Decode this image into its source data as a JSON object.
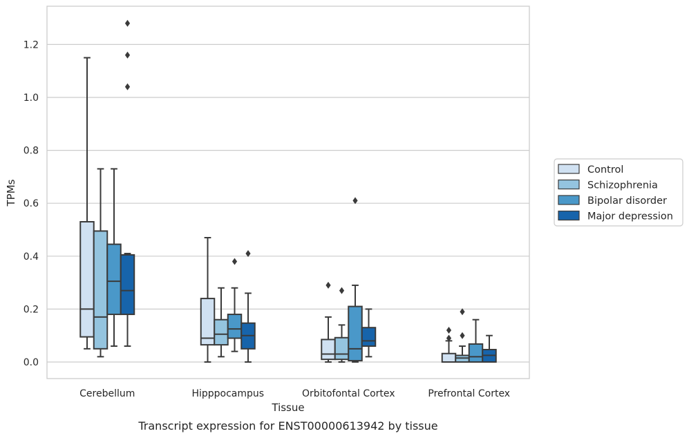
{
  "caption": "Transcript expression for ENST00000613942 by tissue",
  "chart_data": {
    "type": "box",
    "xlabel": "Tissue",
    "ylabel": "TPMs",
    "ylim": [
      -0.06,
      1.35
    ],
    "yticks": [
      0.0,
      0.2,
      0.4,
      0.6,
      0.8,
      1.0,
      1.2
    ],
    "ytick_labels": [
      "0.0",
      "0.2",
      "0.4",
      "0.6",
      "0.8",
      "1.0",
      "1.2"
    ],
    "grid": "horizontal",
    "legend_position": "right",
    "categories": [
      "Cerebellum",
      "Hipppocampus",
      "Orbitofontal Cortex",
      "Prefrontal Cortex"
    ],
    "series": [
      {
        "name": "Control",
        "color": "#d0e1f2",
        "boxes": [
          {
            "whislo": 0.05,
            "q1": 0.095,
            "med": 0.2,
            "q3": 0.53,
            "whishi": 1.15,
            "fliers": []
          },
          {
            "whislo": 0.0,
            "q1": 0.065,
            "med": 0.09,
            "q3": 0.24,
            "whishi": 0.47,
            "fliers": []
          },
          {
            "whislo": 0.0,
            "q1": 0.01,
            "med": 0.03,
            "q3": 0.085,
            "whishi": 0.17,
            "fliers": [
              0.29
            ]
          },
          {
            "whislo": 0.0,
            "q1": 0.0,
            "med": 0.0,
            "q3": 0.032,
            "whishi": 0.08,
            "fliers": [
              0.09,
              0.12
            ]
          }
        ]
      },
      {
        "name": "Schizophrenia",
        "color": "#94c4df",
        "boxes": [
          {
            "whislo": 0.02,
            "q1": 0.05,
            "med": 0.17,
            "q3": 0.495,
            "whishi": 0.73,
            "fliers": []
          },
          {
            "whislo": 0.02,
            "q1": 0.065,
            "med": 0.105,
            "q3": 0.16,
            "whishi": 0.28,
            "fliers": []
          },
          {
            "whislo": 0.0,
            "q1": 0.01,
            "med": 0.03,
            "q3": 0.092,
            "whishi": 0.14,
            "fliers": [
              0.27
            ]
          },
          {
            "whislo": 0.0,
            "q1": 0.0,
            "med": 0.015,
            "q3": 0.025,
            "whishi": 0.06,
            "fliers": [
              0.1,
              0.19
            ]
          }
        ]
      },
      {
        "name": "Bipolar disorder",
        "color": "#4a98c9",
        "boxes": [
          {
            "whislo": 0.06,
            "q1": 0.18,
            "med": 0.305,
            "q3": 0.445,
            "whishi": 0.73,
            "fliers": []
          },
          {
            "whislo": 0.04,
            "q1": 0.09,
            "med": 0.125,
            "q3": 0.18,
            "whishi": 0.28,
            "fliers": [
              0.38
            ]
          },
          {
            "whislo": 0.0,
            "q1": 0.005,
            "med": 0.05,
            "q3": 0.21,
            "whishi": 0.29,
            "fliers": [
              0.61
            ]
          },
          {
            "whislo": 0.0,
            "q1": 0.0,
            "med": 0.02,
            "q3": 0.068,
            "whishi": 0.16,
            "fliers": []
          }
        ]
      },
      {
        "name": "Major depression",
        "color": "#1764ab",
        "boxes": [
          {
            "whislo": 0.06,
            "q1": 0.18,
            "med": 0.27,
            "q3": 0.405,
            "whishi": 0.41,
            "fliers": [
              1.04,
              1.16,
              1.28
            ]
          },
          {
            "whislo": 0.0,
            "q1": 0.05,
            "med": 0.1,
            "q3": 0.147,
            "whishi": 0.26,
            "fliers": [
              0.41
            ]
          },
          {
            "whislo": 0.02,
            "q1": 0.06,
            "med": 0.08,
            "q3": 0.13,
            "whishi": 0.2,
            "fliers": []
          },
          {
            "whislo": 0.0,
            "q1": 0.0,
            "med": 0.025,
            "q3": 0.047,
            "whishi": 0.1,
            "fliers": []
          }
        ]
      }
    ]
  }
}
